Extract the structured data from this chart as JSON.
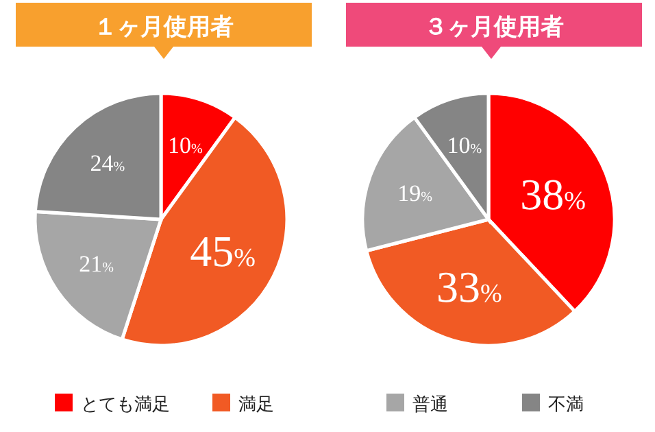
{
  "chart_data": [
    {
      "type": "pie",
      "title": "１ヶ月使用者",
      "categories": [
        "とても満足",
        "満足",
        "普通",
        "不満"
      ],
      "values": [
        10,
        45,
        21,
        24
      ],
      "colors": [
        "#ff0000",
        "#f15a24",
        "#a6a6a6",
        "#858585"
      ],
      "value_labels": [
        "10%",
        "45%",
        "21%",
        "24%"
      ],
      "legend": "bottom"
    },
    {
      "type": "pie",
      "title": "３ヶ月使用者",
      "categories": [
        null,
        null,
        null,
        null
      ],
      "values": [
        38,
        33,
        19,
        10
      ],
      "colors": [
        "#ff0000",
        "#f15a24",
        "#a6a6a6",
        "#858585"
      ],
      "value_labels": [
        "38%",
        "33%",
        "19%",
        "10%"
      ]
    }
  ]
}
